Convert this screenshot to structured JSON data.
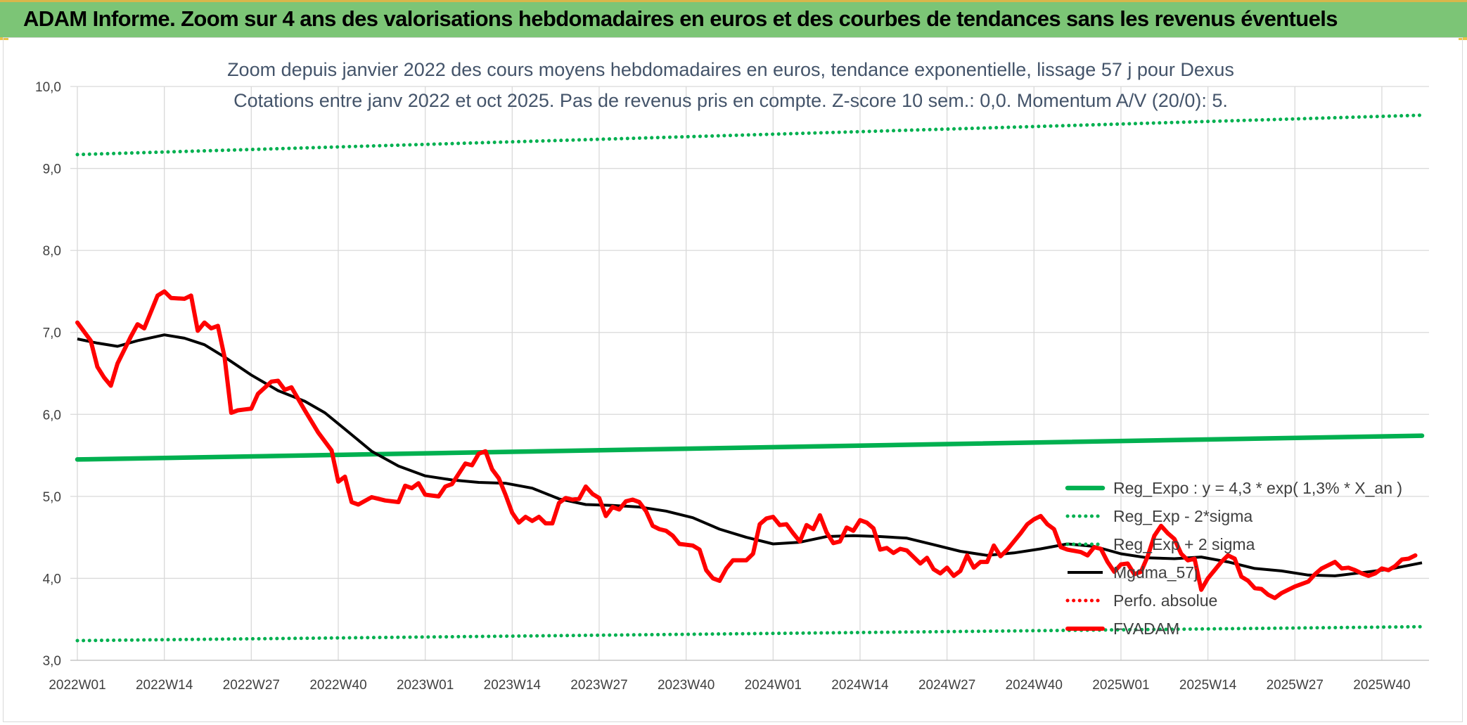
{
  "banner": {
    "title": "ADAM Informe. Zoom sur 4 ans des valorisations hebdomadaires en euros et des courbes de tendances sans les revenus éventuels"
  },
  "chart_data": {
    "type": "line",
    "title": "Zoom depuis janvier 2022 des cours moyens hebdomadaires en euros, tendance exponentielle, lissage 57 j pour Dexus",
    "subtitle": "Cotations entre janv 2022 et oct 2025. Pas de revenus pris en compte. Z-score 10 sem.: 0,0. Momentum A/V (20/0): 5.",
    "xlabel": "",
    "ylabel": "",
    "ylim": [
      3.0,
      10.0
    ],
    "yticks": [
      "3,0",
      "4,0",
      "5,0",
      "6,0",
      "7,0",
      "8,0",
      "9,0",
      "10,0"
    ],
    "grid": true,
    "legend_position": "right",
    "x": [
      "2022W01",
      "2022W14",
      "2022W27",
      "2022W40",
      "2023W01",
      "2023W14",
      "2023W27",
      "2023W40",
      "2024W01",
      "2024W14",
      "2024W27",
      "2024W40",
      "2025W01",
      "2025W14",
      "2025W27",
      "2025W40"
    ],
    "x_range_weeks": [
      0,
      201
    ],
    "series": [
      {
        "name": "Reg_Expo : y = 4,3 * exp( 1,3% *  X_an )",
        "color": "#00b050",
        "style": "solid-thick",
        "points": [
          [
            0,
            5.45
          ],
          [
            201,
            5.74
          ]
        ]
      },
      {
        "name": "Reg_Exp - 2*sigma",
        "color": "#00b050",
        "style": "dotted",
        "points": [
          [
            0,
            3.24
          ],
          [
            201,
            3.41
          ]
        ]
      },
      {
        "name": "Reg_Exp + 2 sigma",
        "color": "#00b050",
        "style": "dotted",
        "points": [
          [
            0,
            9.17
          ],
          [
            201,
            9.65
          ]
        ]
      },
      {
        "name": "Mgdma_57j",
        "color": "#000000",
        "style": "solid",
        "points": [
          [
            0,
            6.92
          ],
          [
            3,
            6.87
          ],
          [
            6,
            6.83
          ],
          [
            9,
            6.9
          ],
          [
            13,
            6.97
          ],
          [
            16,
            6.93
          ],
          [
            19,
            6.85
          ],
          [
            22,
            6.7
          ],
          [
            26,
            6.48
          ],
          [
            30,
            6.29
          ],
          [
            34,
            6.16
          ],
          [
            37,
            6.02
          ],
          [
            40,
            5.82
          ],
          [
            44,
            5.55
          ],
          [
            48,
            5.37
          ],
          [
            52,
            5.25
          ],
          [
            56,
            5.2
          ],
          [
            60,
            5.17
          ],
          [
            64,
            5.16
          ],
          [
            68,
            5.1
          ],
          [
            72,
            4.97
          ],
          [
            76,
            4.9
          ],
          [
            80,
            4.89
          ],
          [
            84,
            4.87
          ],
          [
            88,
            4.82
          ],
          [
            92,
            4.74
          ],
          [
            96,
            4.6
          ],
          [
            100,
            4.5
          ],
          [
            104,
            4.42
          ],
          [
            108,
            4.44
          ],
          [
            112,
            4.51
          ],
          [
            116,
            4.52
          ],
          [
            120,
            4.51
          ],
          [
            124,
            4.49
          ],
          [
            128,
            4.41
          ],
          [
            132,
            4.33
          ],
          [
            136,
            4.28
          ],
          [
            140,
            4.31
          ],
          [
            144,
            4.36
          ],
          [
            148,
            4.42
          ],
          [
            152,
            4.39
          ],
          [
            156,
            4.3
          ],
          [
            160,
            4.25
          ],
          [
            164,
            4.24
          ],
          [
            168,
            4.26
          ],
          [
            172,
            4.2
          ],
          [
            176,
            4.12
          ],
          [
            180,
            4.09
          ],
          [
            184,
            4.04
          ],
          [
            188,
            4.03
          ],
          [
            192,
            4.07
          ],
          [
            196,
            4.11
          ],
          [
            201,
            4.19
          ]
        ]
      },
      {
        "name": "Perfo. absolue",
        "color": "#ff0000",
        "style": "dotted",
        "points": []
      },
      {
        "name": "FVADAM",
        "color": "#ff0000",
        "style": "solid-thick",
        "points": [
          [
            0,
            7.12
          ],
          [
            2,
            6.9
          ],
          [
            3,
            6.58
          ],
          [
            4,
            6.45
          ],
          [
            5,
            6.35
          ],
          [
            6,
            6.62
          ],
          [
            8,
            6.95
          ],
          [
            9,
            7.1
          ],
          [
            10,
            7.05
          ],
          [
            12,
            7.45
          ],
          [
            13,
            7.5
          ],
          [
            14,
            7.42
          ],
          [
            16,
            7.41
          ],
          [
            17,
            7.45
          ],
          [
            18,
            7.02
          ],
          [
            19,
            7.12
          ],
          [
            20,
            7.05
          ],
          [
            21,
            7.08
          ],
          [
            22,
            6.7
          ],
          [
            23,
            6.02
          ],
          [
            24,
            6.05
          ],
          [
            25,
            6.06
          ],
          [
            26,
            6.07
          ],
          [
            27,
            6.25
          ],
          [
            29,
            6.4
          ],
          [
            30,
            6.41
          ],
          [
            31,
            6.3
          ],
          [
            32,
            6.33
          ],
          [
            34,
            6.05
          ],
          [
            36,
            5.78
          ],
          [
            38,
            5.56
          ],
          [
            39,
            5.18
          ],
          [
            40,
            5.24
          ],
          [
            41,
            4.93
          ],
          [
            42,
            4.9
          ],
          [
            44,
            4.99
          ],
          [
            46,
            4.95
          ],
          [
            48,
            4.93
          ],
          [
            49,
            5.13
          ],
          [
            50,
            5.1
          ],
          [
            51,
            5.16
          ],
          [
            52,
            5.02
          ],
          [
            54,
            5.0
          ],
          [
            55,
            5.12
          ],
          [
            56,
            5.15
          ],
          [
            58,
            5.4
          ],
          [
            59,
            5.38
          ],
          [
            60,
            5.52
          ],
          [
            61,
            5.55
          ],
          [
            62,
            5.33
          ],
          [
            63,
            5.22
          ],
          [
            64,
            5.02
          ],
          [
            65,
            4.8
          ],
          [
            66,
            4.68
          ],
          [
            67,
            4.75
          ],
          [
            68,
            4.7
          ],
          [
            69,
            4.75
          ],
          [
            70,
            4.67
          ],
          [
            71,
            4.67
          ],
          [
            72,
            4.92
          ],
          [
            73,
            4.98
          ],
          [
            74,
            4.96
          ],
          [
            75,
            4.97
          ],
          [
            76,
            5.12
          ],
          [
            77,
            5.03
          ],
          [
            78,
            4.98
          ],
          [
            79,
            4.76
          ],
          [
            80,
            4.87
          ],
          [
            81,
            4.84
          ],
          [
            82,
            4.94
          ],
          [
            83,
            4.96
          ],
          [
            84,
            4.93
          ],
          [
            85,
            4.82
          ],
          [
            86,
            4.64
          ],
          [
            87,
            4.6
          ],
          [
            88,
            4.58
          ],
          [
            89,
            4.52
          ],
          [
            90,
            4.42
          ],
          [
            92,
            4.4
          ],
          [
            93,
            4.35
          ],
          [
            94,
            4.1
          ],
          [
            95,
            4.0
          ],
          [
            96,
            3.97
          ],
          [
            97,
            4.12
          ],
          [
            98,
            4.22
          ],
          [
            100,
            4.22
          ],
          [
            101,
            4.3
          ],
          [
            102,
            4.66
          ],
          [
            103,
            4.73
          ],
          [
            104,
            4.75
          ],
          [
            105,
            4.65
          ],
          [
            106,
            4.66
          ],
          [
            107,
            4.55
          ],
          [
            108,
            4.45
          ],
          [
            109,
            4.65
          ],
          [
            110,
            4.6
          ],
          [
            111,
            4.77
          ],
          [
            112,
            4.56
          ],
          [
            113,
            4.43
          ],
          [
            114,
            4.45
          ],
          [
            115,
            4.62
          ],
          [
            116,
            4.58
          ],
          [
            117,
            4.71
          ],
          [
            118,
            4.68
          ],
          [
            119,
            4.61
          ],
          [
            120,
            4.35
          ],
          [
            121,
            4.37
          ],
          [
            122,
            4.31
          ],
          [
            123,
            4.36
          ],
          [
            124,
            4.34
          ],
          [
            126,
            4.18
          ],
          [
            127,
            4.25
          ],
          [
            128,
            4.11
          ],
          [
            129,
            4.06
          ],
          [
            130,
            4.13
          ],
          [
            131,
            4.03
          ],
          [
            132,
            4.09
          ],
          [
            133,
            4.28
          ],
          [
            134,
            4.13
          ],
          [
            135,
            4.2
          ],
          [
            136,
            4.2
          ],
          [
            137,
            4.4
          ],
          [
            138,
            4.27
          ],
          [
            139,
            4.35
          ],
          [
            141,
            4.55
          ],
          [
            142,
            4.66
          ],
          [
            143,
            4.72
          ],
          [
            144,
            4.76
          ],
          [
            145,
            4.66
          ],
          [
            146,
            4.6
          ],
          [
            147,
            4.38
          ],
          [
            148,
            4.35
          ],
          [
            150,
            4.32
          ],
          [
            151,
            4.28
          ],
          [
            152,
            4.38
          ],
          [
            153,
            4.36
          ],
          [
            154,
            4.2
          ],
          [
            155,
            4.08
          ],
          [
            156,
            4.17
          ],
          [
            157,
            4.18
          ],
          [
            158,
            4.05
          ],
          [
            159,
            4.08
          ],
          [
            160,
            4.27
          ],
          [
            161,
            4.52
          ],
          [
            162,
            4.64
          ],
          [
            163,
            4.55
          ],
          [
            164,
            4.48
          ],
          [
            165,
            4.3
          ],
          [
            166,
            4.22
          ],
          [
            167,
            4.24
          ],
          [
            168,
            3.86
          ],
          [
            169,
            4.0
          ],
          [
            170,
            4.1
          ],
          [
            171,
            4.2
          ],
          [
            172,
            4.28
          ],
          [
            173,
            4.24
          ],
          [
            174,
            4.02
          ],
          [
            175,
            3.97
          ],
          [
            176,
            3.88
          ],
          [
            177,
            3.87
          ],
          [
            178,
            3.8
          ],
          [
            179,
            3.76
          ],
          [
            180,
            3.82
          ],
          [
            181,
            3.86
          ],
          [
            182,
            3.9
          ],
          [
            184,
            3.96
          ],
          [
            185,
            4.05
          ],
          [
            186,
            4.12
          ],
          [
            188,
            4.2
          ],
          [
            189,
            4.12
          ],
          [
            190,
            4.13
          ],
          [
            191,
            4.1
          ],
          [
            192,
            4.06
          ],
          [
            193,
            4.03
          ],
          [
            194,
            4.06
          ],
          [
            195,
            4.12
          ],
          [
            196,
            4.1
          ],
          [
            197,
            4.15
          ],
          [
            198,
            4.23
          ],
          [
            199,
            4.24
          ],
          [
            200,
            4.28
          ]
        ]
      }
    ]
  }
}
